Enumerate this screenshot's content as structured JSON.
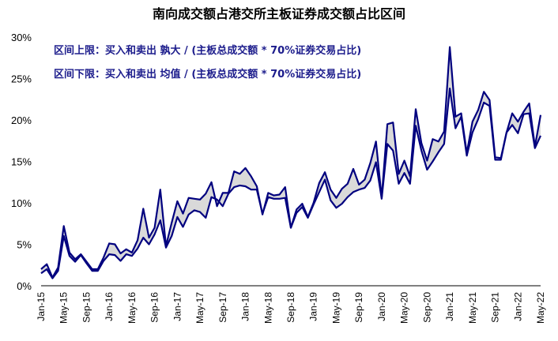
{
  "chart_data": {
    "type": "area",
    "title": "南向成交额占港交所主板证券成交额占比区间",
    "xlabel": "",
    "ylabel": "",
    "ylim": [
      0,
      30
    ],
    "y_ticks": [
      "0%",
      "5%",
      "10%",
      "15%",
      "20%",
      "25%",
      "30%"
    ],
    "x_tick_labels": [
      "Jan-15",
      "May-15",
      "Sep-15",
      "Jan-16",
      "May-16",
      "Sep-16",
      "Jan-17",
      "May-17",
      "Sep-17",
      "Jan-18",
      "May-18",
      "Sep-18",
      "Jan-19",
      "May-19",
      "Sep-19",
      "Jan-20",
      "May-20",
      "Sep-20",
      "Jan-21",
      "May-21",
      "Sep-21",
      "Jan-22",
      "May-22"
    ],
    "annotations": [
      "区间上限：买入和卖出 孰大 / (主板总成交额 * 70%证券交易占比)",
      "区间下限：买入和卖出 均值 / (主板总成交额 * 70%证券交易占比)"
    ],
    "series": [
      {
        "name": "区间上限",
        "values": [
          2.0,
          2.6,
          1.0,
          2.2,
          7.2,
          4.0,
          3.2,
          3.8,
          2.9,
          2.0,
          2.0,
          3.4,
          5.1,
          5.0,
          3.9,
          4.4,
          4.0,
          5.5,
          9.3,
          5.8,
          7.0,
          11.6,
          4.8,
          7.6,
          10.2,
          8.7,
          10.6,
          10.5,
          10.4,
          11.1,
          12.5,
          9.6,
          11.2,
          11.2,
          13.8,
          13.5,
          14.2,
          13.2,
          12.0,
          8.6,
          11.2,
          10.9,
          11.0,
          11.9,
          7.0,
          9.2,
          9.9,
          8.3,
          10.0,
          12.4,
          13.7,
          11.6,
          10.6,
          11.7,
          12.3,
          14.1,
          12.2,
          12.8,
          14.8,
          17.4,
          10.6,
          19.5,
          19.7,
          13.5,
          15.1,
          13.2,
          21.3,
          17.2,
          15.1,
          17.7,
          17.4,
          18.6,
          28.8,
          20.4,
          20.8,
          16.0,
          19.8,
          21.2,
          23.4,
          22.4,
          15.5,
          15.4,
          18.5,
          20.8,
          19.8,
          21.0,
          22.0,
          16.8,
          20.6
        ]
      },
      {
        "name": "区间下限",
        "values": [
          1.5,
          2.0,
          0.9,
          1.8,
          6.0,
          3.6,
          2.9,
          3.7,
          2.7,
          1.8,
          1.8,
          3.0,
          3.8,
          3.7,
          3.0,
          3.8,
          3.6,
          4.5,
          5.8,
          5.0,
          6.2,
          7.9,
          4.6,
          6.0,
          8.3,
          7.1,
          8.6,
          9.1,
          8.9,
          8.2,
          10.7,
          10.4,
          9.6,
          11.1,
          11.9,
          12.1,
          12.0,
          11.6,
          11.6,
          8.7,
          10.7,
          10.5,
          10.5,
          10.6,
          7.0,
          8.8,
          9.5,
          8.2,
          9.8,
          11.3,
          12.8,
          10.3,
          9.4,
          9.9,
          10.7,
          11.3,
          11.6,
          11.8,
          12.7,
          14.9,
          10.5,
          17.1,
          16.3,
          12.3,
          13.6,
          12.3,
          19.3,
          16.3,
          14.0,
          15.0,
          16.1,
          17.1,
          23.8,
          19.0,
          20.4,
          15.7,
          18.5,
          20.1,
          22.1,
          21.7,
          15.2,
          15.2,
          18.5,
          19.4,
          18.4,
          20.7,
          20.8,
          16.6,
          18.1
        ]
      }
    ],
    "colors": {
      "line": "#00007f",
      "fill": "#d9d9d9",
      "annotation": "#1c1c8c"
    }
  }
}
